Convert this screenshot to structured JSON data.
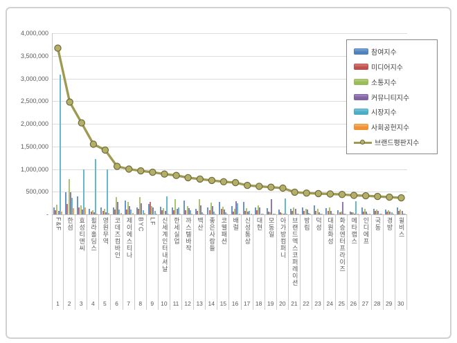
{
  "chart_data": {
    "type": "bar+line combo",
    "title": "",
    "xlabel": "",
    "ylabel": "",
    "ylim": [
      0,
      4000000
    ],
    "grid": true,
    "legend_position": "top-right",
    "y_tick_labels": [
      "4,000,000",
      "3,500,000",
      "3,000,000",
      "2,500,000",
      "2,000,000",
      "1,500,000",
      "1,000,000",
      "500,000",
      "-"
    ],
    "y_tick_values": [
      4000000,
      3500000,
      3000000,
      2500000,
      2000000,
      1500000,
      1000000,
      500000,
      0
    ],
    "categories": [
      "F&F",
      "한섬",
      "효성티앤씨",
      "휠라홀딩스",
      "영원무역",
      "코데즈컴바인",
      "제이에스티나",
      "BYC",
      "LF",
      "신세계인터내셔날",
      "한세실업",
      "까스텔바작",
      "백산",
      "좋은사람들",
      "코웰패션",
      "배럴",
      "신성통상",
      "대현",
      "모동일",
      "아가방컴퍼니",
      "브랜드엑스코퍼레이션",
      "방림",
      "덕성",
      "대원화성",
      "화승엔터프라이즈",
      "메타랩스",
      "인디에프",
      "국동",
      "경방",
      "윌비스"
    ],
    "rank_labels": [
      "1",
      "2",
      "3",
      "4",
      "5",
      "6",
      "7",
      "8",
      "9",
      "10",
      "11",
      "12",
      "13",
      "14",
      "15",
      "16",
      "17",
      "18",
      "19",
      "20",
      "21",
      "22",
      "23",
      "24",
      "25",
      "26",
      "27",
      "28",
      "29",
      "30"
    ],
    "series": [
      {
        "name": "참여지수",
        "key": "participation-index",
        "type": "bar",
        "color": "#4F81BD",
        "color_light": "#7DA6D4",
        "values": [
          160000,
          490000,
          400000,
          120000,
          150000,
          160000,
          300000,
          160000,
          230000,
          170000,
          150000,
          300000,
          120000,
          150000,
          270000,
          180000,
          280000,
          150000,
          140000,
          100000,
          120000,
          160000,
          200000,
          140000,
          90000,
          60000,
          150000,
          120000,
          100000,
          150000
        ]
      },
      {
        "name": "미디어지수",
        "key": "media-index",
        "type": "bar",
        "color": "#C0504D",
        "color_light": "#D67E7B",
        "values": [
          90000,
          230000,
          160000,
          60000,
          80000,
          100000,
          100000,
          120000,
          270000,
          90000,
          90000,
          90000,
          80000,
          90000,
          120000,
          60000,
          80000,
          90000,
          60000,
          50000,
          70000,
          70000,
          70000,
          80000,
          50000,
          40000,
          60000,
          80000,
          60000,
          70000
        ]
      },
      {
        "name": "소통지수",
        "key": "communication-index",
        "type": "bar",
        "color": "#9BBB59",
        "color_light": "#B5CE85",
        "values": [
          210000,
          780000,
          200000,
          90000,
          120000,
          380000,
          280000,
          380000,
          190000,
          140000,
          330000,
          180000,
          330000,
          260000,
          170000,
          120000,
          140000,
          200000,
          50000,
          30000,
          150000,
          120000,
          120000,
          150000,
          60000,
          40000,
          120000,
          100000,
          90000,
          100000
        ]
      },
      {
        "name": "커뮤니티지수",
        "key": "community-index",
        "type": "bar",
        "color": "#8064A2",
        "color_light": "#A28BBE",
        "values": [
          70000,
          490000,
          110000,
          40000,
          40000,
          280000,
          190000,
          250000,
          150000,
          70000,
          120000,
          130000,
          200000,
          180000,
          110000,
          290000,
          60000,
          160000,
          330000,
          20000,
          120000,
          100000,
          50000,
          70000,
          270000,
          20000,
          60000,
          70000,
          60000,
          80000
        ]
      },
      {
        "name": "시장지수",
        "key": "market-index",
        "type": "bar",
        "color": "#4BACC6",
        "color_light": "#7CC6DA",
        "values": [
          3080000,
          360000,
          990000,
          1220000,
          1000000,
          110000,
          100000,
          90000,
          70000,
          400000,
          150000,
          90000,
          40000,
          60000,
          40000,
          240000,
          70000,
          15000,
          15000,
          350000,
          20000,
          30000,
          15000,
          10000,
          20000,
          290000,
          20000,
          20000,
          40000,
          20000
        ]
      },
      {
        "name": "사회공헌지수",
        "key": "social-contribution-index",
        "type": "bar",
        "color": "#EF9135",
        "color_light": "#F7B571",
        "values": [
          60000,
          130000,
          160000,
          20000,
          30000,
          30000,
          30000,
          30000,
          20000,
          20000,
          20000,
          20000,
          10000,
          10000,
          10000,
          10000,
          10000,
          5000,
          5000,
          20000,
          10000,
          10000,
          5000,
          10000,
          10000,
          10000,
          10000,
          10000,
          20000,
          10000
        ]
      },
      {
        "name": "브랜드평판지수",
        "key": "brand-reputation-index",
        "type": "line",
        "color": "#9E9A51",
        "marker_fill": "#B3AE68",
        "marker_stroke": "#6E6B3A",
        "values": [
          3670000,
          2480000,
          2020000,
          1550000,
          1420000,
          1060000,
          1000000,
          960000,
          930000,
          890000,
          860000,
          810000,
          780000,
          750000,
          720000,
          700000,
          640000,
          620000,
          600000,
          580000,
          490000,
          470000,
          460000,
          450000,
          440000,
          420000,
          410000,
          395000,
          380000,
          365000
        ]
      }
    ]
  }
}
